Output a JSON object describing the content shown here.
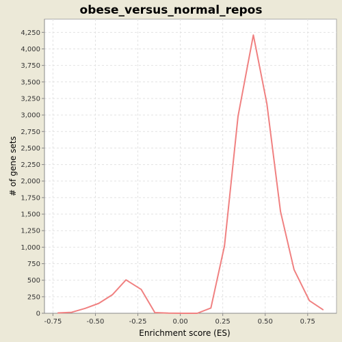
{
  "chart_data": {
    "type": "line",
    "title": "obese_versus_normal_repos",
    "xlabel": "Enrichment score (ES)",
    "ylabel": "# of gene sets",
    "xlim": [
      -0.8,
      0.92
    ],
    "ylim": [
      0,
      4450
    ],
    "x_ticks": [
      -0.75,
      -0.5,
      -0.25,
      0.0,
      0.25,
      0.5,
      0.75
    ],
    "x_tick_labels": [
      "-0.75",
      "-0.50",
      "-0.25",
      "0.00",
      "0.25",
      "0.50",
      "0.75"
    ],
    "y_ticks": [
      0,
      250,
      500,
      750,
      1000,
      1250,
      1500,
      1750,
      2000,
      2250,
      2500,
      2750,
      3000,
      3250,
      3500,
      3750,
      4000,
      4250
    ],
    "y_tick_labels": [
      "0",
      "250",
      "500",
      "750",
      "1,000",
      "1,250",
      "1,500",
      "1,750",
      "2,000",
      "2,250",
      "2,500",
      "2,750",
      "3,000",
      "3,250",
      "3,500",
      "3,750",
      "4,000",
      "4,250"
    ],
    "grid": true,
    "legend": "none",
    "series": [
      {
        "color": "#f08080",
        "x": [
          -0.72,
          -0.64,
          -0.56,
          -0.48,
          -0.4,
          -0.32,
          -0.23,
          -0.15,
          -0.07,
          0.02,
          0.1,
          0.18,
          0.26,
          0.34,
          0.43,
          0.51,
          0.59,
          0.67,
          0.76,
          0.84
        ],
        "y": [
          5,
          15,
          75,
          150,
          280,
          505,
          360,
          10,
          2,
          0,
          0,
          80,
          1020,
          2980,
          4210,
          3170,
          1540,
          660,
          190,
          55
        ]
      }
    ]
  }
}
